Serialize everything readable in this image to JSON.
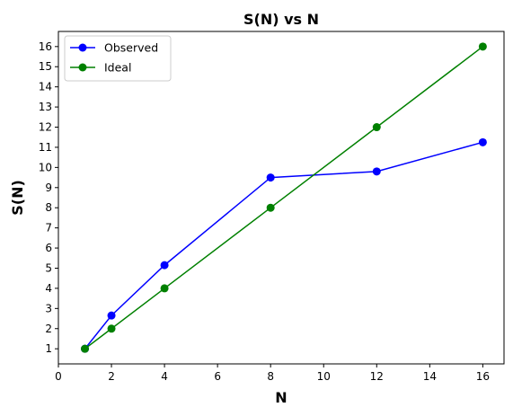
{
  "chart_data": {
    "type": "line",
    "title": "S(N) vs N",
    "xlabel": "N",
    "ylabel": "S(N)",
    "xlim": [
      0,
      16.8
    ],
    "ylim": [
      0.25,
      16.75
    ],
    "xticks": [
      0,
      2,
      4,
      6,
      8,
      10,
      12,
      14,
      16
    ],
    "yticks": [
      1,
      2,
      3,
      4,
      5,
      6,
      7,
      8,
      9,
      10,
      11,
      12,
      13,
      14,
      15,
      16
    ],
    "grid": false,
    "legend_position": "upper-left",
    "series": [
      {
        "name": "Observed",
        "color": "#0000ff",
        "marker": "circle",
        "x": [
          1,
          2,
          4,
          8,
          12,
          16
        ],
        "y": [
          1.0,
          2.65,
          5.15,
          9.5,
          9.8,
          11.25
        ]
      },
      {
        "name": "Ideal",
        "color": "#008000",
        "marker": "circle",
        "x": [
          1,
          2,
          4,
          8,
          12,
          16
        ],
        "y": [
          1,
          2,
          4,
          8,
          12,
          16
        ]
      }
    ]
  }
}
